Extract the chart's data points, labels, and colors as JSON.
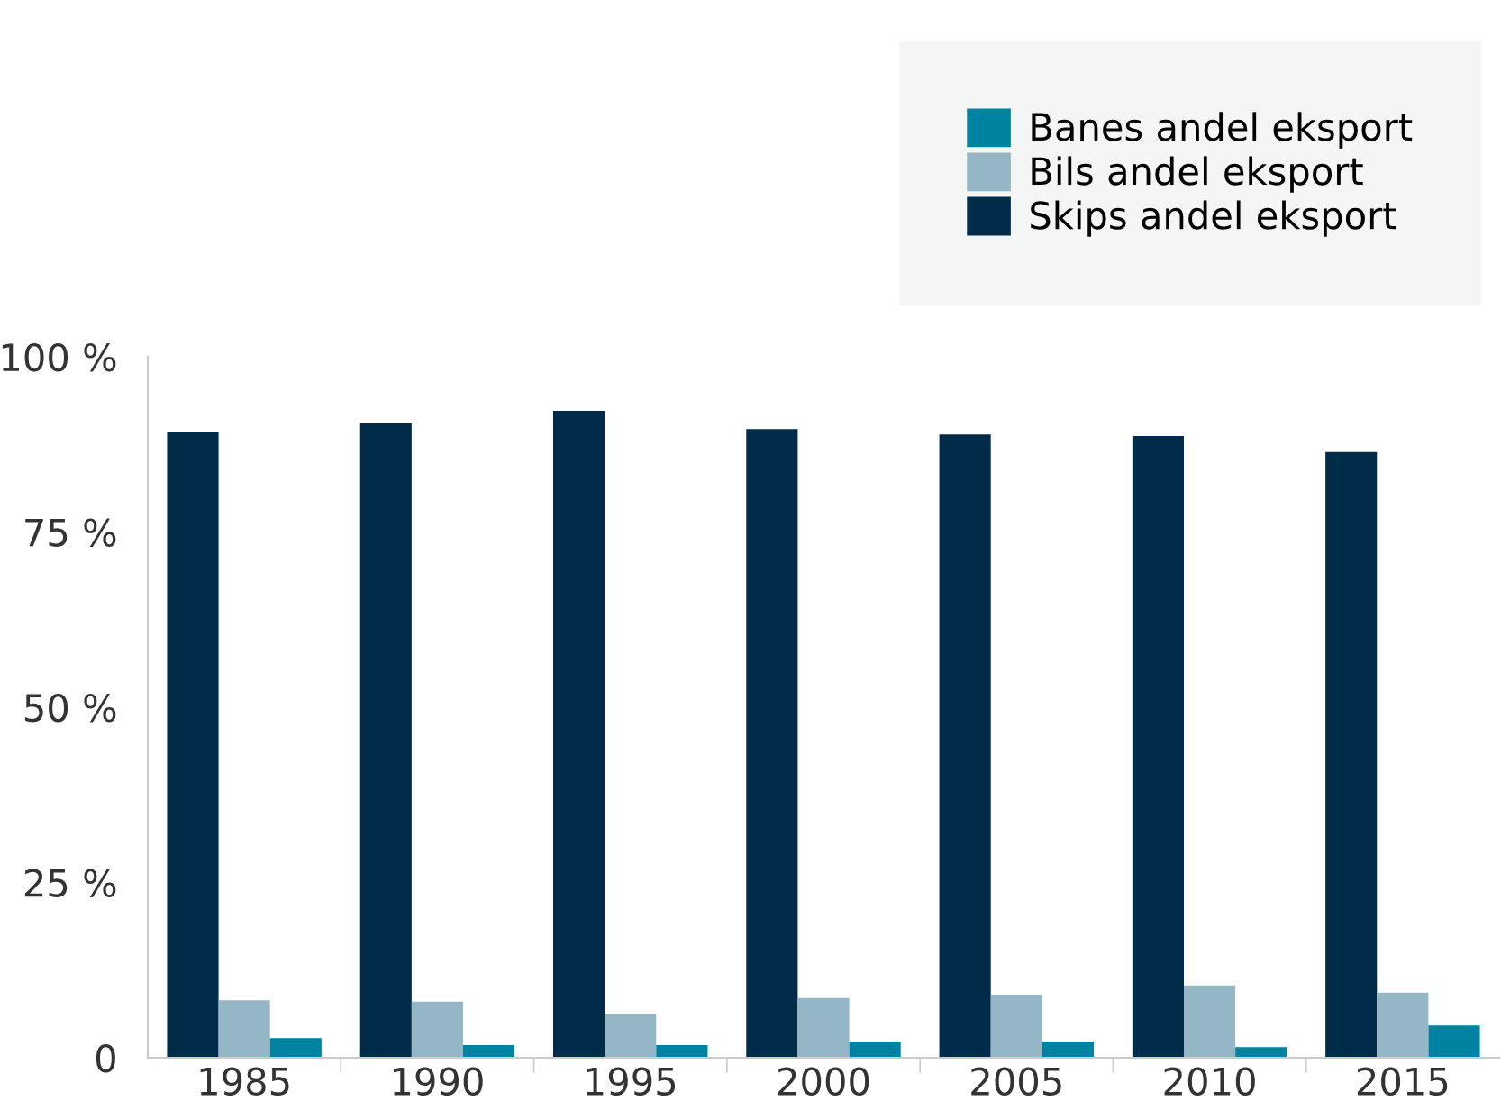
{
  "chart_data": {
    "type": "bar",
    "categories": [
      "1985",
      "1990",
      "1995",
      "2000",
      "2005",
      "2010",
      "2015"
    ],
    "series": [
      {
        "name": "Skips andel eksport",
        "color": "#002c4a",
        "values": [
          89.2,
          90.5,
          92.3,
          89.7,
          88.9,
          88.7,
          86.4
        ]
      },
      {
        "name": "Bils andel eksport",
        "color": "#94b6c5",
        "values": [
          8.2,
          8.0,
          6.2,
          8.5,
          9.0,
          10.3,
          9.3
        ]
      },
      {
        "name": "Banes andel eksport",
        "color": "#0083a0",
        "values": [
          2.8,
          1.8,
          1.8,
          2.3,
          2.3,
          1.5,
          4.6
        ]
      }
    ],
    "ylim": [
      0,
      100
    ],
    "yticks": [
      {
        "value": 0,
        "label": "0"
      },
      {
        "value": 25,
        "label": "25 %"
      },
      {
        "value": 50,
        "label": "50 %"
      },
      {
        "value": 75,
        "label": "75 %"
      },
      {
        "value": 100,
        "label": "100 %"
      }
    ],
    "grid": false,
    "legend": "top right"
  }
}
